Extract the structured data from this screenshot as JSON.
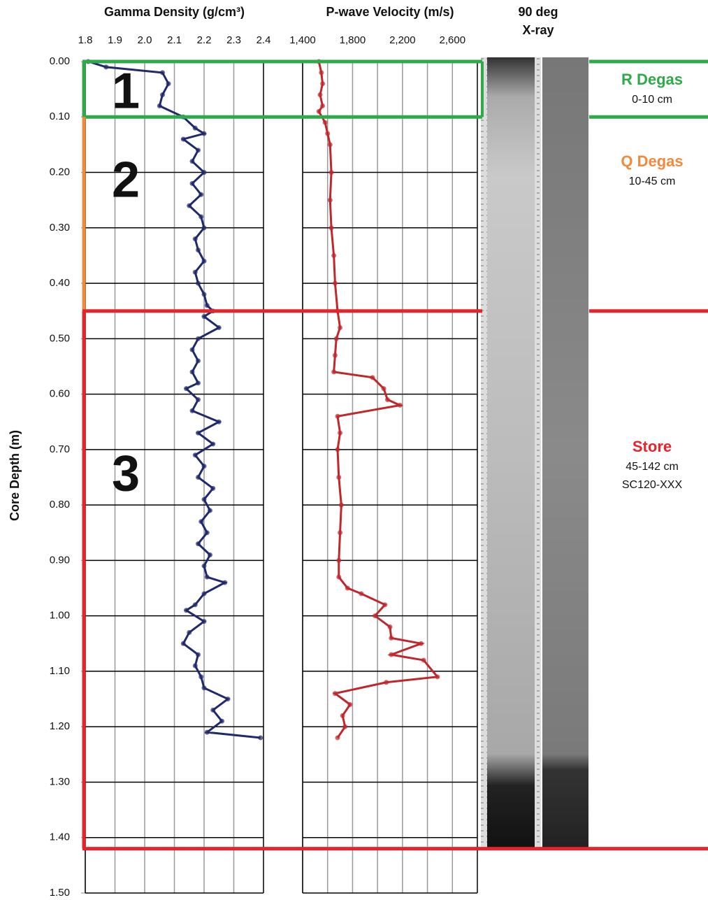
{
  "chart_data": [
    {
      "type": "line",
      "title": "Gamma Density (g/cm³)",
      "y_label": "Core Depth (m)",
      "color": "#1f2a6b",
      "xlim": [
        1.8,
        2.4
      ],
      "xticks": [
        1.8,
        1.9,
        {
          "value": 2,
          "label": "2.0"
        },
        2.1,
        2.2,
        2.3,
        2.4
      ],
      "ylim": [
        0,
        1.5
      ],
      "yticks": [
        {
          "value": 0,
          "label": "0.00"
        },
        {
          "value": 0.1,
          "label": "0.10"
        },
        {
          "value": 0.2,
          "label": "0.20"
        },
        {
          "value": 0.3,
          "label": "0.30"
        },
        {
          "value": 0.4,
          "label": "0.40"
        },
        {
          "value": 0.5,
          "label": "0.50"
        },
        {
          "value": 0.6,
          "label": "0.60"
        },
        {
          "value": 0.7,
          "label": "0.70"
        },
        {
          "value": 0.8,
          "label": "0.80"
        },
        {
          "value": 0.9,
          "label": "0.90"
        },
        {
          "value": 1,
          "label": "1.00"
        },
        {
          "value": 1.1,
          "label": "1.10"
        },
        {
          "value": 1.2,
          "label": "1.20"
        },
        {
          "value": 1.3,
          "label": "1.30"
        },
        {
          "value": 1.4,
          "label": "1.40"
        },
        {
          "value": 1.5,
          "label": "1.50"
        }
      ],
      "depths": [
        0,
        0.01,
        0.02,
        0.04,
        0.06,
        0.08,
        0.1,
        0.12,
        0.13,
        0.14,
        0.16,
        0.18,
        0.2,
        0.22,
        0.24,
        0.26,
        0.28,
        0.3,
        0.32,
        0.34,
        0.36,
        0.38,
        0.4,
        0.42,
        0.44,
        0.45,
        0.46,
        0.48,
        0.5,
        0.52,
        0.54,
        0.56,
        0.58,
        0.59,
        0.61,
        0.63,
        0.65,
        0.67,
        0.69,
        0.71,
        0.73,
        0.75,
        0.77,
        0.79,
        0.81,
        0.83,
        0.85,
        0.87,
        0.89,
        0.91,
        0.93,
        0.94,
        0.96,
        0.98,
        0.99,
        1.01,
        1.03,
        1.05,
        1.07,
        1.09,
        1.11,
        1.13,
        1.15,
        1.17,
        1.19,
        1.21,
        1.22
      ],
      "values": [
        1.81,
        1.87,
        2.06,
        2.08,
        2.06,
        2.05,
        2.13,
        2.17,
        2.2,
        2.13,
        2.18,
        2.16,
        2.2,
        2.16,
        2.19,
        2.15,
        2.19,
        2.2,
        2.17,
        2.18,
        2.2,
        2.17,
        2.18,
        2.2,
        2.21,
        2.23,
        2.2,
        2.25,
        2.18,
        2.16,
        2.18,
        2.16,
        2.18,
        2.14,
        2.18,
        2.16,
        2.25,
        2.18,
        2.23,
        2.17,
        2.2,
        2.18,
        2.23,
        2.2,
        2.22,
        2.19,
        2.21,
        2.18,
        2.22,
        2.2,
        2.21,
        2.27,
        2.2,
        2.17,
        2.14,
        2.2,
        2.15,
        2.13,
        2.18,
        2.17,
        2.19,
        2.2,
        2.28,
        2.23,
        2.26,
        2.21,
        2.39
      ]
    },
    {
      "type": "line",
      "title": "P-wave Velocity (m/s)",
      "color": "#c0272d",
      "xlim": [
        1400,
        2800
      ],
      "xticks": [
        {
          "value": 1400,
          "label": "1,400"
        },
        {
          "value": 1800,
          "label": "1,800"
        },
        {
          "value": 2200,
          "label": "2,200"
        },
        {
          "value": 2600,
          "label": "2,600"
        }
      ],
      "x_minor_ticks": [
        1600,
        2000,
        2400,
        2800
      ],
      "ylim": [
        0,
        1.5
      ],
      "yticks": [
        0,
        0.1,
        0.2,
        0.3,
        0.4,
        0.5,
        0.6,
        0.7,
        0.8,
        0.9,
        1,
        1.1,
        1.2,
        1.3,
        1.4,
        1.5
      ],
      "depths": [
        0,
        0.02,
        0.04,
        0.06,
        0.08,
        0.09,
        0.11,
        0.13,
        0.15,
        0.2,
        0.25,
        0.3,
        0.35,
        0.4,
        0.45,
        0.48,
        0.5,
        0.53,
        0.56,
        0.57,
        0.59,
        0.61,
        0.62,
        0.64,
        0.67,
        0.7,
        0.75,
        0.8,
        0.85,
        0.9,
        0.93,
        0.95,
        0.96,
        0.98,
        1,
        1.02,
        1.04,
        1.05,
        1.07,
        1.08,
        1.11,
        1.12,
        1.14,
        1.16,
        1.18,
        1.2,
        1.22
      ],
      "values": [
        1530,
        1550,
        1560,
        1540,
        1560,
        1530,
        1580,
        1600,
        1620,
        1630,
        1620,
        1630,
        1650,
        1660,
        1680,
        1700,
        1670,
        1660,
        1650,
        1960,
        2050,
        2080,
        2180,
        1680,
        1700,
        1680,
        1690,
        1710,
        1700,
        1690,
        1690,
        1760,
        1870,
        2060,
        1980,
        2100,
        2110,
        2350,
        2110,
        2370,
        2480,
        2070,
        1660,
        1780,
        1720,
        1740,
        1680
      ]
    }
  ],
  "xray_label": {
    "line1": "90 deg",
    "line2": "X-ray"
  },
  "sections": [
    {
      "label": "1",
      "depth": 0.06
    },
    {
      "label": "2",
      "depth": 0.22
    },
    {
      "label": "3",
      "depth": 0.75
    }
  ],
  "zones": [
    {
      "name": "R Degas",
      "range": "0-10 cm",
      "top": 0,
      "bottom": 0.1,
      "color": "#2eaa4a"
    },
    {
      "name": "Q Degas",
      "range": "10-45 cm",
      "top": 0.1,
      "bottom": 0.45,
      "color": "#f08a3c"
    },
    {
      "name": "Store",
      "range": "45-142 cm",
      "note": "SC120-XXX",
      "top": 0.45,
      "bottom": 1.42,
      "color": "#e8232a"
    }
  ]
}
